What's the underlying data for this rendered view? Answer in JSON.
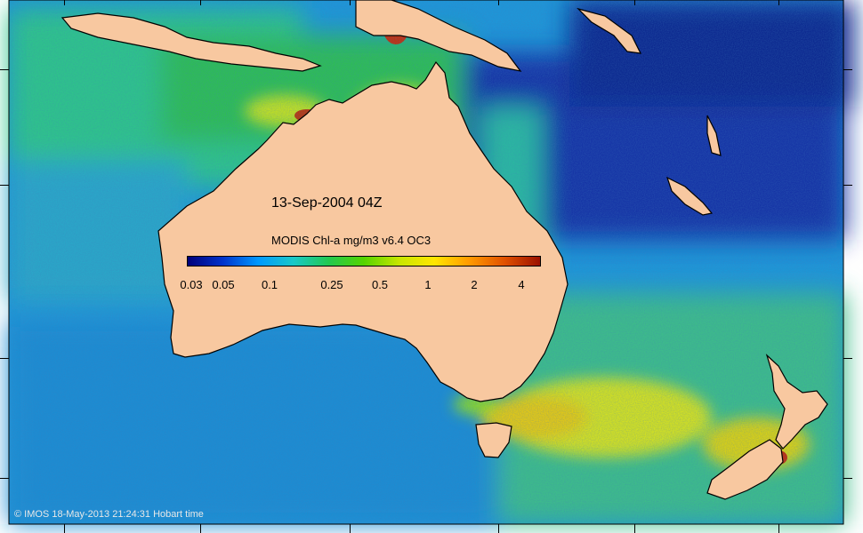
{
  "map": {
    "title": "13-Sep-2004 04Z",
    "legend_title": "MODIS Chl-a mg/m3 v6.4 OC3",
    "colorbar": {
      "stops": [
        "#00007a",
        "#0033cc",
        "#0099ff",
        "#19c8c8",
        "#22c850",
        "#55d400",
        "#c8e600",
        "#ffe600",
        "#ff9900",
        "#e05000",
        "#9a1000"
      ],
      "tick_labels": [
        "0.03",
        "0.05",
        "0.1",
        "0.25",
        "0.5",
        "1",
        "2",
        "4"
      ]
    },
    "colors": {
      "land": "#f8c8a0",
      "deep_ocean": "#1030a0",
      "open_ocean": "#1a8ad0",
      "productive": "#22c060",
      "bloom": "#e0d020",
      "high": "#c03000"
    },
    "copyright": "© IMOS 18-May-2013 21:24:31 Hobart time"
  }
}
